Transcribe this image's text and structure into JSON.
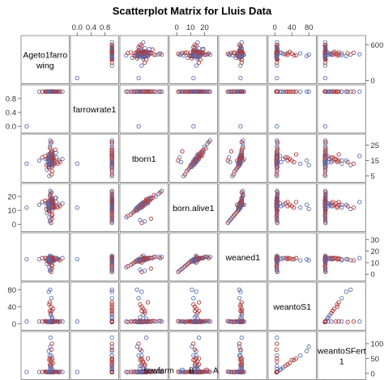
{
  "chart_data": {
    "type": "scatter",
    "title": "Scatterplot Matrix for Lluis Data",
    "variables": [
      {
        "label": "Ageto1farrowing",
        "range": [
          0,
          700
        ],
        "ticks": [
          0,
          600
        ]
      },
      {
        "label": "farrowrate1",
        "range": [
          -0.1,
          1.1
        ],
        "ticks": [
          0.0,
          0.4,
          0.8
        ]
      },
      {
        "label": "tborn1",
        "range": [
          3,
          30
        ],
        "ticks": [
          5,
          15,
          25
        ]
      },
      {
        "label": "born.alive1",
        "range": [
          -3,
          27
        ],
        "ticks": [
          0,
          10,
          20
        ]
      },
      {
        "label": "weaned1",
        "range": [
          -3,
          33
        ],
        "ticks": [
          0,
          10,
          20,
          30
        ]
      },
      {
        "label": "weantoS1",
        "range": [
          -8,
          90
        ],
        "ticks": [
          0,
          40,
          80
        ]
      },
      {
        "label": "weantoSFert1",
        "range": [
          -10,
          130
        ],
        "ticks": [
          0,
          50,
          100
        ]
      }
    ],
    "legend": {
      "title": "sowfarm",
      "position": "bottom",
      "entries": [
        {
          "name": "B",
          "color": "#5a6fb0"
        },
        {
          "name": "A",
          "color": "#b03a3a"
        }
      ]
    },
    "grid": false,
    "points": {
      "fields": [
        "Ageto1farrowing",
        "farrowrate1",
        "tborn1",
        "born.alive1",
        "weaned1",
        "weantoS1",
        "weantoSFert1",
        "sowfarm"
      ],
      "rows": [
        [
          430,
          1,
          14,
          13,
          13,
          5,
          5,
          "B"
        ],
        [
          455,
          1,
          16,
          14,
          14,
          5,
          5,
          "A"
        ],
        [
          410,
          1,
          12,
          11,
          12,
          5,
          5,
          "B"
        ],
        [
          480,
          1,
          18,
          16,
          14,
          6,
          6,
          "A"
        ],
        [
          395,
          1,
          13,
          12,
          12,
          4,
          4,
          "B"
        ],
        [
          500,
          1,
          15,
          14,
          13,
          5,
          5,
          "A"
        ],
        [
          440,
          1,
          20,
          18,
          14,
          5,
          5,
          "B"
        ],
        [
          465,
          1,
          11,
          10,
          11,
          6,
          6,
          "A"
        ],
        [
          420,
          1,
          17,
          15,
          13,
          5,
          5,
          "B"
        ],
        [
          445,
          1,
          14,
          13,
          12,
          4,
          4,
          "A"
        ],
        [
          470,
          1,
          19,
          17,
          14,
          5,
          5,
          "B"
        ],
        [
          415,
          1,
          10,
          9,
          10,
          5,
          5,
          "A"
        ],
        [
          435,
          1,
          16,
          14,
          13,
          6,
          6,
          "B"
        ],
        [
          490,
          1,
          13,
          12,
          12,
          5,
          5,
          "A"
        ],
        [
          405,
          1,
          15,
          14,
          13,
          4,
          4,
          "B"
        ],
        [
          460,
          1,
          21,
          19,
          14,
          5,
          5,
          "A"
        ],
        [
          425,
          1,
          12,
          11,
          12,
          5,
          5,
          "B"
        ],
        [
          450,
          1,
          18,
          16,
          13,
          6,
          6,
          "A"
        ],
        [
          475,
          1,
          14,
          13,
          12,
          5,
          5,
          "B"
        ],
        [
          400,
          1,
          17,
          15,
          14,
          5,
          5,
          "A"
        ],
        [
          380,
          1,
          9,
          8,
          9,
          5,
          5,
          "B"
        ],
        [
          520,
          1,
          22,
          19,
          14,
          6,
          6,
          "A"
        ],
        [
          390,
          1,
          16,
          15,
          13,
          4,
          4,
          "B"
        ],
        [
          510,
          1,
          13,
          12,
          12,
          5,
          5,
          "A"
        ],
        [
          430,
          1,
          24,
          20,
          15,
          5,
          5,
          "B"
        ],
        [
          470,
          1,
          8,
          7,
          8,
          5,
          5,
          "A"
        ],
        [
          445,
          1,
          15,
          15,
          13,
          6,
          6,
          "B"
        ],
        [
          455,
          1,
          19,
          18,
          14,
          5,
          5,
          "A"
        ],
        [
          420,
          1,
          11,
          11,
          11,
          5,
          5,
          "B"
        ],
        [
          485,
          1,
          16,
          15,
          13,
          4,
          4,
          "A"
        ],
        [
          410,
          1,
          14,
          12,
          12,
          5,
          5,
          "B"
        ],
        [
          465,
          1,
          17,
          16,
          13,
          5,
          5,
          "A"
        ],
        [
          440,
          1,
          26,
          22,
          15,
          6,
          6,
          "B"
        ],
        [
          425,
          1,
          12,
          10,
          11,
          5,
          5,
          "A"
        ],
        [
          495,
          1,
          15,
          13,
          12,
          5,
          5,
          "B"
        ],
        [
          415,
          1,
          18,
          17,
          14,
          4,
          4,
          "A"
        ],
        [
          435,
          1,
          13,
          13,
          12,
          5,
          5,
          "B"
        ],
        [
          460,
          1,
          20,
          17,
          14,
          6,
          6,
          "A"
        ],
        [
          450,
          1,
          14,
          14,
          13,
          5,
          5,
          "B"
        ],
        [
          475,
          1,
          16,
          13,
          12,
          5,
          5,
          "A"
        ],
        [
          405,
          1,
          19,
          15,
          13,
          5,
          5,
          "B"
        ],
        [
          480,
          1,
          12,
          12,
          12,
          4,
          4,
          "A"
        ],
        [
          430,
          1,
          15,
          14,
          13,
          5,
          5,
          "B"
        ],
        [
          445,
          1,
          17,
          14,
          13,
          6,
          6,
          "A"
        ],
        [
          420,
          1,
          13,
          11,
          11,
          5,
          5,
          "B"
        ],
        [
          455,
          1,
          21,
          18,
          14,
          5,
          5,
          "A"
        ],
        [
          400,
          1,
          16,
          16,
          14,
          5,
          5,
          "B"
        ],
        [
          470,
          1,
          14,
          12,
          12,
          5,
          5,
          "A"
        ],
        [
          440,
          1,
          18,
          17,
          14,
          4,
          4,
          "B"
        ],
        [
          410,
          1,
          11,
          10,
          11,
          5,
          5,
          "A"
        ],
        [
          465,
          1,
          15,
          13,
          13,
          5,
          5,
          "B"
        ],
        [
          435,
          1,
          23,
          21,
          15,
          6,
          6,
          "A"
        ],
        [
          425,
          1,
          14,
          14,
          13,
          5,
          5,
          "B"
        ],
        [
          490,
          1,
          17,
          15,
          13,
          5,
          5,
          "A"
        ],
        [
          450,
          1,
          12,
          12,
          12,
          4,
          4,
          "B"
        ],
        [
          415,
          1,
          16,
          14,
          13,
          5,
          5,
          "A"
        ],
        [
          460,
          1,
          19,
          16,
          14,
          5,
          5,
          "B"
        ],
        [
          430,
          1,
          13,
          13,
          12,
          6,
          6,
          "A"
        ],
        [
          445,
          1,
          15,
          12,
          12,
          5,
          5,
          "B"
        ],
        [
          475,
          1,
          18,
          18,
          14,
          5,
          5,
          "A"
        ],
        [
          540,
          1,
          17,
          16,
          14,
          6,
          6,
          "B"
        ],
        [
          560,
          1,
          13,
          12,
          13,
          5,
          5,
          "A"
        ],
        [
          360,
          1,
          16,
          15,
          14,
          5,
          5,
          "B"
        ],
        [
          580,
          1,
          15,
          14,
          13,
          4,
          4,
          "A"
        ],
        [
          530,
          1,
          20,
          19,
          14,
          5,
          5,
          "B"
        ],
        [
          370,
          1,
          12,
          11,
          12,
          5,
          5,
          "A"
        ],
        [
          550,
          1,
          14,
          13,
          13,
          5,
          5,
          "B"
        ],
        [
          350,
          1,
          18,
          17,
          14,
          6,
          6,
          "A"
        ],
        [
          430,
          1,
          17,
          2,
          3,
          5,
          5,
          "B"
        ],
        [
          450,
          1,
          15,
          1,
          2,
          6,
          6,
          "A"
        ],
        [
          440,
          1,
          14,
          3,
          4,
          5,
          5,
          "B"
        ],
        [
          465,
          1,
          21,
          4,
          5,
          5,
          5,
          "A"
        ],
        [
          420,
          1,
          5,
          5,
          6,
          5,
          5,
          "B"
        ],
        [
          460,
          1,
          6,
          6,
          7,
          4,
          4,
          "A"
        ],
        [
          435,
          1,
          28,
          24,
          15,
          5,
          5,
          "B"
        ],
        [
          455,
          1,
          27,
          23,
          14,
          6,
          6,
          "A"
        ],
        [
          445,
          1,
          16,
          14,
          14,
          20,
          20,
          "B"
        ],
        [
          430,
          1,
          15,
          13,
          13,
          30,
          30,
          "A"
        ],
        [
          470,
          1,
          18,
          15,
          14,
          12,
          12,
          "B"
        ],
        [
          420,
          1,
          14,
          12,
          13,
          45,
          45,
          "A"
        ],
        [
          455,
          1,
          13,
          12,
          12,
          60,
          60,
          "B"
        ],
        [
          440,
          1,
          17,
          15,
          14,
          25,
          25,
          "A"
        ],
        [
          410,
          1,
          15,
          14,
          13,
          75,
          75,
          "B"
        ],
        [
          480,
          1,
          16,
          14,
          14,
          35,
          35,
          "A"
        ],
        [
          465,
          1,
          14,
          13,
          13,
          15,
          15,
          "B"
        ],
        [
          425,
          1,
          19,
          16,
          14,
          50,
          50,
          "A"
        ],
        [
          435,
          1,
          12,
          11,
          12,
          80,
          90,
          "B"
        ],
        [
          450,
          1,
          15,
          13,
          13,
          40,
          45,
          "A"
        ],
        [
          40,
          0,
          13,
          12,
          13,
          5,
          5,
          "B"
        ],
        [
          445,
          1,
          15,
          14,
          10,
          5,
          5,
          "A"
        ],
        [
          430,
          1,
          16,
          14,
          16,
          5,
          5,
          "B"
        ],
        [
          460,
          1,
          14,
          13,
          11,
          6,
          6,
          "A"
        ],
        [
          420,
          1,
          17,
          15,
          12,
          5,
          5,
          "B"
        ],
        [
          470,
          1,
          15,
          14,
          15,
          5,
          5,
          "A"
        ],
        [
          455,
          1,
          13,
          12,
          11,
          5,
          5,
          "B"
        ],
        [
          440,
          1,
          16,
          15,
          13,
          4,
          4,
          "A"
        ],
        [
          640,
          1,
          16,
          15,
          14,
          5,
          5,
          "B"
        ],
        [
          600,
          1,
          14,
          13,
          12,
          6,
          6,
          "A"
        ],
        [
          250,
          1,
          15,
          14,
          13,
          5,
          5,
          "B"
        ],
        [
          300,
          1,
          17,
          16,
          14,
          5,
          5,
          "A"
        ],
        [
          435,
          1,
          14,
          13,
          13,
          5,
          25,
          "B"
        ],
        [
          450,
          1,
          16,
          15,
          14,
          5,
          40,
          "A"
        ],
        [
          425,
          1,
          15,
          14,
          13,
          5,
          60,
          "B"
        ],
        [
          465,
          1,
          13,
          12,
          12,
          5,
          100,
          "A"
        ],
        [
          440,
          1,
          18,
          16,
          14,
          5,
          120,
          "B"
        ],
        [
          455,
          1,
          14,
          13,
          13,
          4,
          80,
          "A"
        ],
        [
          430,
          1,
          16,
          15,
          14,
          5,
          15,
          "B"
        ],
        [
          470,
          1,
          15,
          14,
          13,
          5,
          50,
          "A"
        ],
        [
          445,
          1,
          12,
          12,
          12,
          5,
          5,
          "B"
        ],
        [
          460,
          1,
          17,
          16,
          14,
          30,
          30,
          "A"
        ],
        [
          415,
          1,
          14,
          14,
          13,
          5,
          5,
          "B"
        ],
        [
          480,
          1,
          18,
          16,
          14,
          5,
          5,
          "A"
        ]
      ]
    }
  }
}
